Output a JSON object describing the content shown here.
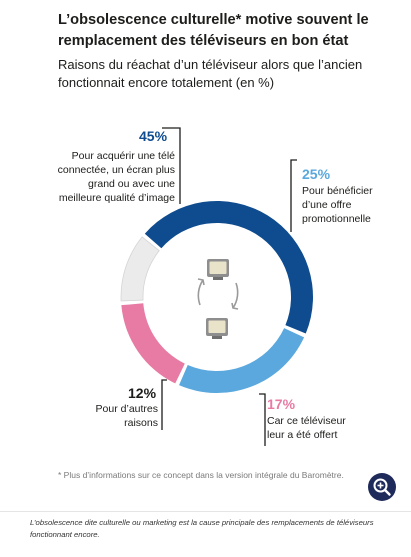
{
  "header": {
    "title": "L’obsolescence culturelle* motive souvent le remplacement des téléviseurs en bon état",
    "subtitle": "Raisons du réachat d’un téléviseur alors que l’ancien fonctionnait encore totalement (en %)"
  },
  "chart_data": {
    "type": "pie",
    "title": "L’obsolescence culturelle* motive souvent le remplacement des téléviseurs en bon état",
    "subtitle": "Raisons du réachat d’un téléviseur alors que l’ancien fonctionnait encore totalement (en %)",
    "segments": [
      {
        "label": "Pour acquérir une télé connectée, un écran plus grand ou avec une meilleure qualité d’image",
        "value": 45,
        "value_label": "45%",
        "color": "#0e4c8f"
      },
      {
        "label": "Pour bénéficier d’une offre promotionnelle",
        "value": 25,
        "value_label": "25%",
        "color": "#5aa8de"
      },
      {
        "label": "Car ce téléviseur leur a été offert",
        "value": 17,
        "value_label": "17%",
        "color": "#e87ba3"
      },
      {
        "label": "Pour d’autres raisons",
        "value": 12,
        "value_label": "12%",
        "color": "#ebebeb"
      }
    ],
    "center_icons": [
      "tv-icon",
      "cycle-arrows-icon",
      "tv-icon"
    ]
  },
  "footnote": "* Plus d’informations sur ce concept dans la version intégrale du Baromètre.",
  "zoom_button": {
    "icon": "zoom-in-icon",
    "color": "#1e2a5a"
  },
  "caption": "L’obsolescence dite culturelle ou marketing est la cause principale des remplacements de téléviseurs fonctionnant encore."
}
